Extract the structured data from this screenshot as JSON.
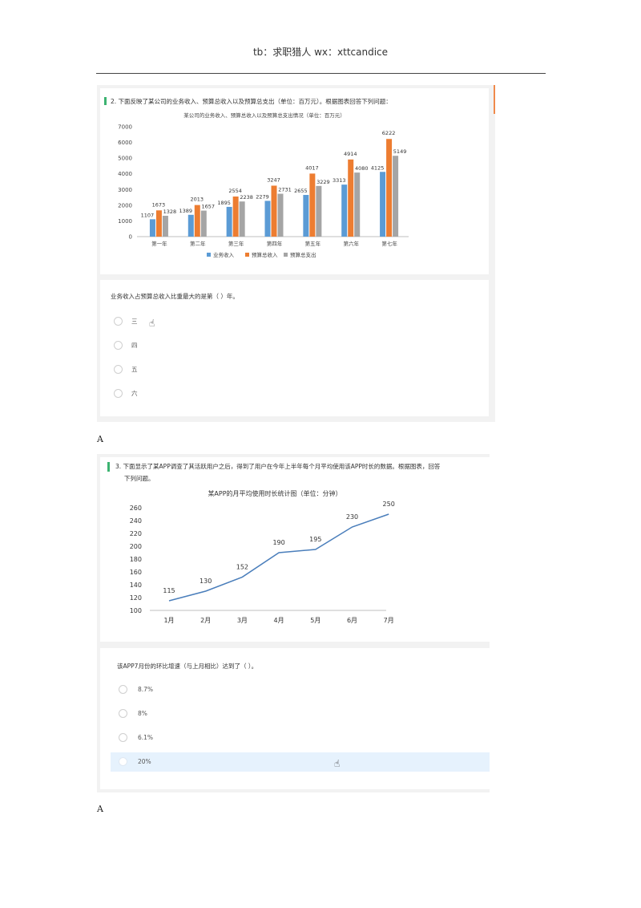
{
  "header": {
    "text": "tb：求职猎人  wx：xttcandice"
  },
  "q2": {
    "prompt": "2. 下面反映了某公司的业务收入、预算总收入以及预算总支出（单位：百万元）。根据图表回答下列问题：",
    "question": "业务收入占预算总收入比重最大的是第（ ）年。",
    "options": [
      "三",
      "四",
      "五",
      "六"
    ],
    "answer": "A"
  },
  "q3": {
    "prompt_line1": "3. 下面显示了某APP调查了其活跃用户之后，得到了用户在今年上半年每个月平均使用该APP时长的数据。根据图表，回答",
    "prompt_line2": "下列问题。",
    "question": "该APP7月份的环比增速（与上月相比）达到了（ ）。",
    "options": [
      "8.7%",
      "8%",
      "6.1%",
      "20%"
    ],
    "answer": "A"
  },
  "chart_data": [
    {
      "type": "bar",
      "title": "某公司的业务收入、预算总收入以及预算总支出情况（单位：百万元）",
      "categories": [
        "第一年",
        "第二年",
        "第三年",
        "第四年",
        "第五年",
        "第六年",
        "第七年"
      ],
      "series": [
        {
          "name": "业务收入",
          "color": "#5b9bd5",
          "values": [
            1107,
            1389,
            1895,
            2279,
            2655,
            3313,
            4125
          ]
        },
        {
          "name": "预算总收入",
          "color": "#ed7d31",
          "values": [
            1673,
            2013,
            2554,
            3247,
            4017,
            4914,
            6222
          ]
        },
        {
          "name": "预算总支出",
          "color": "#a5a5a5",
          "values": [
            1328,
            1657,
            2238,
            2731,
            3229,
            4080,
            5149
          ]
        }
      ],
      "yticks": [
        "0",
        "1000",
        "2000",
        "3000",
        "4000",
        "5000",
        "6000",
        "7000"
      ],
      "ylim": [
        0,
        7000
      ],
      "legend": "bottom"
    },
    {
      "type": "line",
      "title": "某APP的月平均使用时长统计图（单位：分钟）",
      "categories": [
        "1月",
        "2月",
        "3月",
        "4月",
        "5月",
        "6月",
        "7月"
      ],
      "series": [
        {
          "color": "#4a7ebb",
          "values": [
            115,
            130,
            152,
            190,
            195,
            230,
            250
          ]
        }
      ],
      "yticks": [
        "260",
        "240",
        "220",
        "200",
        "180",
        "160",
        "140",
        "120",
        "100"
      ],
      "ylim": [
        100,
        260
      ]
    }
  ]
}
